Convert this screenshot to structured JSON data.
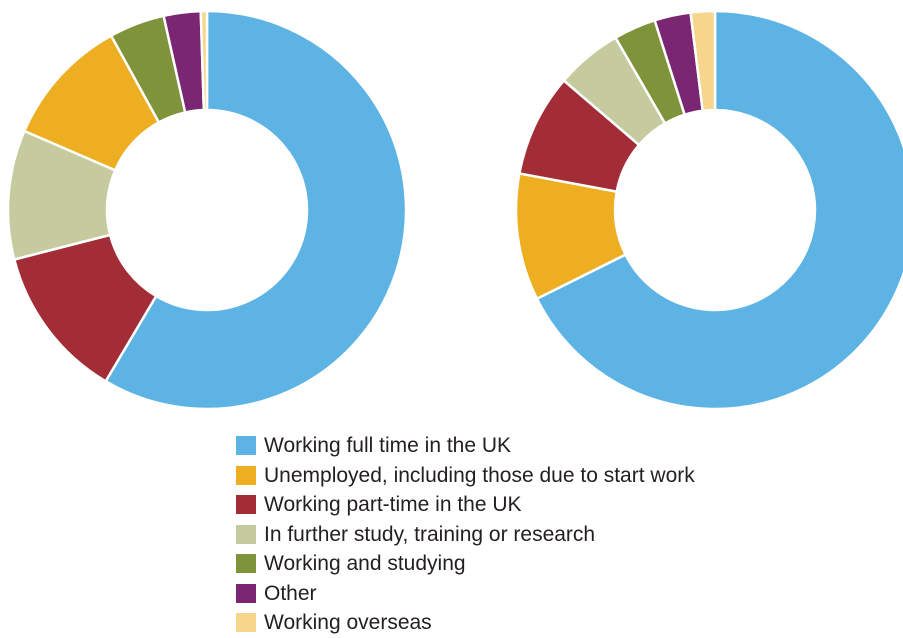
{
  "chart_data": [
    {
      "type": "pie",
      "style": "donut",
      "categories": [
        "Working full time in the UK",
        "Working part-time in the UK",
        "In further study, training or research",
        "Unemployed, including those due to start work",
        "Working and studying",
        "Other",
        "Working overseas"
      ],
      "values": [
        58.5,
        12.5,
        10.5,
        10.5,
        4.5,
        3.0,
        0.5
      ],
      "colors": [
        "#5db3e4",
        "#a32d36",
        "#c6cb9f",
        "#edae22",
        "#7e933a",
        "#7a2673",
        "#f6d68c"
      ],
      "unit": "%",
      "start_angle_deg": 0,
      "direction": "clockwise"
    },
    {
      "type": "pie",
      "style": "donut",
      "categories": [
        "Working full time in the UK",
        "Unemployed, including those due to start work",
        "Working part-time in the UK",
        "In further study, training or research",
        "Working and studying",
        "Other",
        "Working overseas"
      ],
      "values": [
        69.0,
        10.5,
        8.5,
        5.5,
        3.5,
        3.0,
        2.0
      ],
      "colors": [
        "#5db3e4",
        "#edae22",
        "#a32d36",
        "#c6cb9f",
        "#7e933a",
        "#7a2673",
        "#f6d68c"
      ],
      "unit": "%",
      "start_angle_deg": 0,
      "direction": "clockwise"
    }
  ],
  "legend": {
    "placement": "bottom-center",
    "items": [
      {
        "label": "Working full time in the UK",
        "color": "#5db3e4"
      },
      {
        "label": "Unemployed, including those due to start work",
        "color": "#edae22"
      },
      {
        "label": "Working part-time in the UK",
        "color": "#a32d36"
      },
      {
        "label": "In further study, training or research",
        "color": "#c6cb9f"
      },
      {
        "label": "Working and studying",
        "color": "#7e933a"
      },
      {
        "label": "Other",
        "color": "#7a2673"
      },
      {
        "label": "Working overseas",
        "color": "#f6d68c"
      }
    ]
  }
}
